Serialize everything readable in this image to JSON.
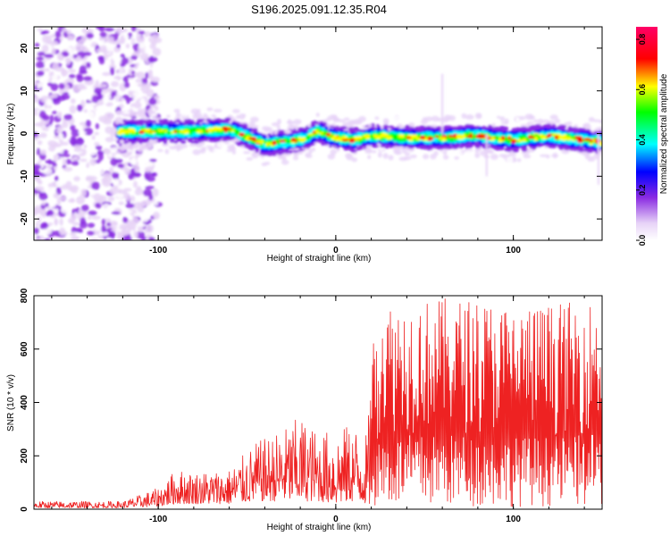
{
  "title": "S196.2025.091.12.35.R04",
  "colors": {
    "snr_line": "#ee2222",
    "colormap": [
      "#ffffff",
      "#dab8f0",
      "#8a2be2",
      "#0000ff",
      "#00ffff",
      "#00ff00",
      "#ffff00",
      "#ff0000",
      "#ff00aa"
    ]
  },
  "chart_data": [
    {
      "type": "heatmap",
      "title": "S196.2025.091.12.35.R04",
      "xlabel": "Height of straight line (km)",
      "ylabel": "Frequency (Hz)",
      "xlim": [
        -170,
        150
      ],
      "ylim": [
        -25,
        25
      ],
      "xticks": [
        -100,
        0,
        100
      ],
      "yticks": [
        -20,
        -10,
        0,
        10,
        20
      ],
      "xtick_labels": [
        "-100",
        "0",
        "100"
      ],
      "ytick_labels": [
        "-20",
        "-10",
        "0",
        "10",
        "20"
      ],
      "grid": false,
      "description_points": {
        "x": [
          -120,
          -100,
          -80,
          -60,
          -40,
          -30,
          -20,
          -10,
          0,
          10,
          20,
          40,
          60,
          80,
          100,
          120,
          140,
          150
        ],
        "peak_frequency": [
          0.5,
          0.5,
          0.5,
          1.0,
          -2.5,
          -2.0,
          -1.5,
          0.5,
          -1.0,
          -1.5,
          -0.5,
          -1.0,
          -1.0,
          -0.5,
          -1.5,
          -0.5,
          -1.5,
          -2.0
        ]
      },
      "colorbar": {
        "label": "Normalized spectral amplitude",
        "range": [
          0.0,
          0.85
        ],
        "ticks": [
          0.0,
          0.2,
          0.4,
          0.6,
          0.8
        ],
        "tick_labels": [
          "0.0",
          "0.2",
          "0.4",
          "0.6",
          "0.8"
        ]
      }
    },
    {
      "type": "line",
      "xlabel": "Height of straight line (km)",
      "ylabel": "SNR (10 * v/v)",
      "xlim": [
        -170,
        150
      ],
      "ylim": [
        0,
        800
      ],
      "xticks": [
        -100,
        0,
        100
      ],
      "yticks": [
        0,
        200,
        400,
        600,
        800
      ],
      "xtick_labels": [
        "-100",
        "0",
        "100"
      ],
      "ytick_labels": [
        "0",
        "200",
        "400",
        "600",
        "800"
      ],
      "grid": false,
      "envelope": {
        "x": [
          -170,
          -120,
          -100,
          -90,
          -80,
          -60,
          -45,
          -30,
          -20,
          -10,
          0,
          10,
          18,
          20,
          25,
          40,
          60,
          80,
          100,
          120,
          140,
          150
        ],
        "max": [
          30,
          30,
          80,
          150,
          140,
          150,
          250,
          300,
          350,
          290,
          300,
          320,
          280,
          620,
          780,
          780,
          790,
          790,
          760,
          770,
          780,
          780
        ],
        "min": [
          5,
          5,
          10,
          20,
          20,
          20,
          30,
          30,
          30,
          30,
          20,
          30,
          20,
          10,
          10,
          10,
          10,
          10,
          10,
          10,
          10,
          10
        ]
      }
    }
  ]
}
